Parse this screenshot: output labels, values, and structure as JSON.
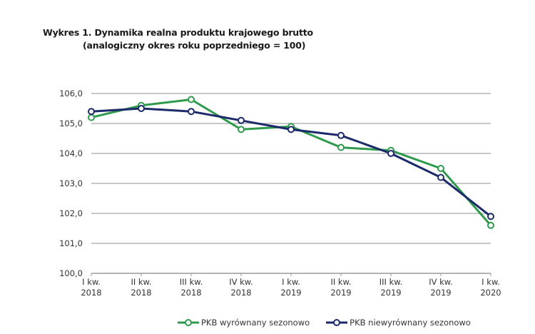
{
  "chart_data": {
    "type": "line",
    "title": "Wykres 1. Dynamika realna produktu krajowego brutto",
    "subtitle": "(analogiczny okres roku poprzedniego = 100)",
    "xlabel": "",
    "ylabel": "",
    "ylim": [
      100,
      106
    ],
    "yticks": [
      "100,0",
      "101,0",
      "102,0",
      "103,0",
      "104,0",
      "105,0",
      "106,0"
    ],
    "grid": true,
    "legend_position": "bottom",
    "categories": [
      [
        "I kw.",
        "2018"
      ],
      [
        "II kw.",
        "2018"
      ],
      [
        "III kw.",
        "2018"
      ],
      [
        "IV kw.",
        "2018"
      ],
      [
        "I kw.",
        "2019"
      ],
      [
        "II kw.",
        "2019"
      ],
      [
        "III kw.",
        "2019"
      ],
      [
        "IV kw.",
        "2019"
      ],
      [
        "I kw.",
        "2020"
      ]
    ],
    "series": [
      {
        "name": "PKB wyrównany sezonowo",
        "color": "#2e9a4c",
        "values": [
          105.2,
          105.6,
          105.8,
          104.8,
          104.9,
          104.2,
          104.1,
          103.5,
          101.6
        ]
      },
      {
        "name": "PKB niewyrównany sezonowo",
        "color": "#1c2a6b",
        "values": [
          105.4,
          105.5,
          105.4,
          105.1,
          104.8,
          104.6,
          104.0,
          103.2,
          101.9
        ]
      }
    ]
  }
}
